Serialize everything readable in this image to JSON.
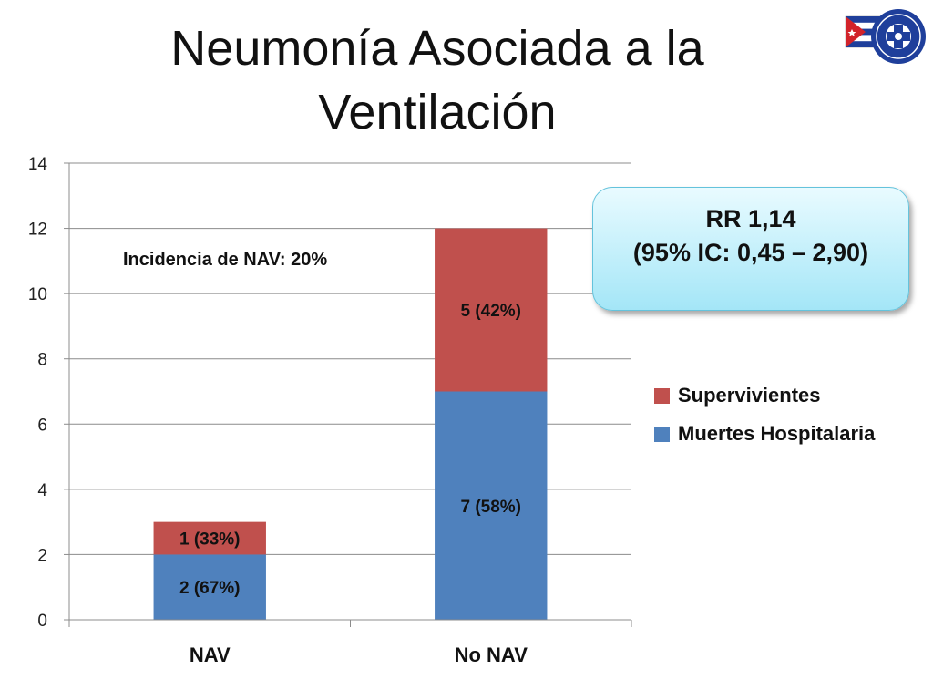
{
  "slide": {
    "title": "Neumonía Asociada a la Ventilación"
  },
  "chart_data": {
    "type": "bar",
    "stacked": true,
    "categories": [
      "NAV",
      "No NAV"
    ],
    "series": [
      {
        "name": "Muertes Hospitalaria",
        "values": [
          2,
          7
        ],
        "labels": [
          "2 (67%)",
          "7 (58%)"
        ],
        "color": "#4f81bd"
      },
      {
        "name": "Supervivientes",
        "values": [
          1,
          5
        ],
        "labels": [
          "1 (33%)",
          "5 (42%)"
        ],
        "color": "#c0504d"
      }
    ],
    "ylim": [
      0,
      14
    ],
    "yticks": [
      0,
      2,
      4,
      6,
      8,
      10,
      12,
      14
    ],
    "grid": true,
    "legend_position": "right",
    "annotation": "Incidencia de NAV: 20%",
    "callout": {
      "line1": "RR 1,14",
      "line2": "(95% IC: 0,45 – 2,90)"
    }
  }
}
